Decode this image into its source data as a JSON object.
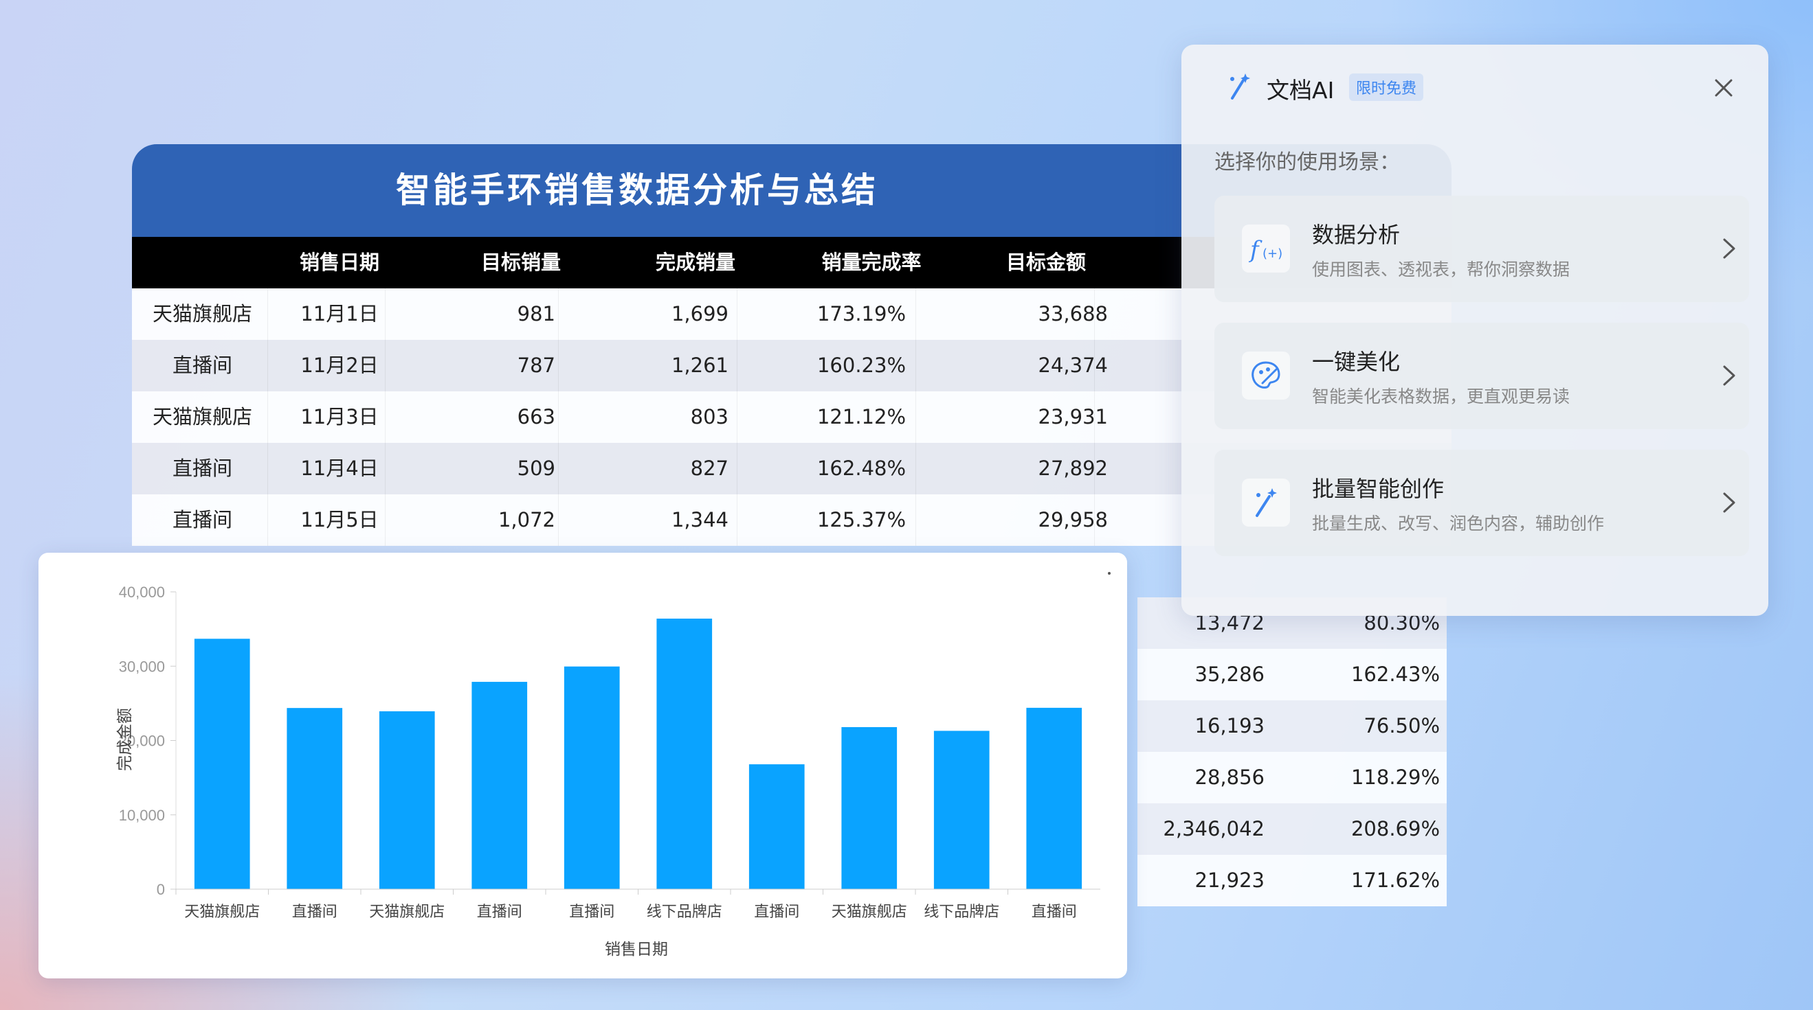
{
  "table": {
    "title": "智能手环销售数据分析与总结",
    "headers": [
      "",
      "销售日期",
      "目标销量",
      "完成销量",
      "销量完成率",
      "目标金额"
    ],
    "rows": [
      [
        "天猫旗舰店",
        "11月1日",
        "981",
        "1,699",
        "173.19%",
        "33,688"
      ],
      [
        "直播间",
        "11月2日",
        "787",
        "1,261",
        "160.23%",
        "24,374"
      ],
      [
        "天猫旗舰店",
        "11月3日",
        "663",
        "803",
        "121.12%",
        "23,931"
      ],
      [
        "直播间",
        "11月4日",
        "509",
        "827",
        "162.48%",
        "27,892"
      ],
      [
        "直播间",
        "11月5日",
        "1,072",
        "1,344",
        "125.37%",
        "29,958"
      ]
    ],
    "fragment_rows": [
      [
        "13,472",
        "80.30%"
      ],
      [
        "35,286",
        "162.43%"
      ],
      [
        "16,193",
        "76.50%"
      ],
      [
        "28,856",
        "118.29%"
      ],
      [
        "2,346,042",
        "208.69%"
      ],
      [
        "21,923",
        "171.62%"
      ]
    ]
  },
  "chart_data": {
    "type": "bar",
    "categories": [
      "天猫旗舰店",
      "直播间",
      "天猫旗舰店",
      "直播间",
      "直播间",
      "线下品牌店",
      "直播间",
      "天猫旗舰店",
      "线下品牌店",
      "直播间"
    ],
    "values": [
      33688,
      24374,
      23931,
      27892,
      29958,
      36400,
      16800,
      21800,
      21300,
      24400
    ],
    "xlabel": "销售日期",
    "ylabel": "完成金额",
    "ylim": [
      0,
      40000
    ],
    "yticks": [
      0,
      10000,
      20000,
      30000,
      40000
    ],
    "ytick_labels": [
      "0",
      "10,000",
      "20,000",
      "30,000",
      "40,000"
    ],
    "bar_color": "#0aa3ff",
    "grid": false
  },
  "ai_panel": {
    "title": "文档AI",
    "badge": "限时免费",
    "prompt": "选择你的使用场景：",
    "scenes": [
      {
        "title": "数据分析",
        "desc": "使用图表、透视表，帮你洞察数据",
        "icon": "function-icon"
      },
      {
        "title": "一键美化",
        "desc": "智能美化表格数据，更直观更易读",
        "icon": "palette-icon"
      },
      {
        "title": "批量智能创作",
        "desc": "批量生成、改写、润色内容，辅助创作",
        "icon": "magic-wand-icon"
      }
    ],
    "accent": "#3d86f0"
  }
}
